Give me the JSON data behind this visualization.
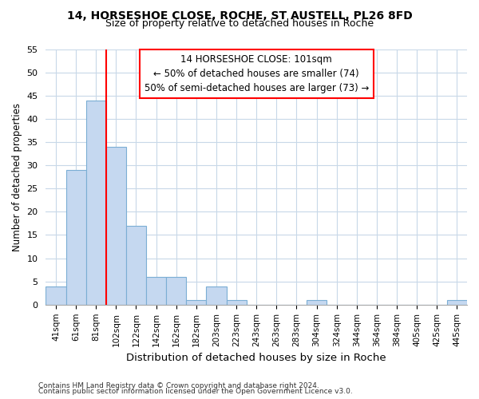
{
  "title1": "14, HORSESHOE CLOSE, ROCHE, ST AUSTELL, PL26 8FD",
  "title2": "Size of property relative to detached houses in Roche",
  "xlabel": "Distribution of detached houses by size in Roche",
  "ylabel": "Number of detached properties",
  "categories": [
    "41sqm",
    "61sqm",
    "81sqm",
    "102sqm",
    "122sqm",
    "142sqm",
    "162sqm",
    "182sqm",
    "203sqm",
    "223sqm",
    "243sqm",
    "263sqm",
    "283sqm",
    "304sqm",
    "324sqm",
    "344sqm",
    "364sqm",
    "384sqm",
    "405sqm",
    "425sqm",
    "445sqm"
  ],
  "values": [
    4,
    29,
    44,
    34,
    17,
    6,
    6,
    1,
    4,
    1,
    0,
    0,
    0,
    1,
    0,
    0,
    0,
    0,
    0,
    0,
    1
  ],
  "bar_color": "#c5d8f0",
  "bar_edge_color": "#7baed4",
  "vline_x": 3,
  "vline_color": "red",
  "annotation_title": "14 HORSESHOE CLOSE: 101sqm",
  "annotation_line1": "← 50% of detached houses are smaller (74)",
  "annotation_line2": "50% of semi-detached houses are larger (73) →",
  "annotation_box_color": "white",
  "annotation_box_edge": "red",
  "ylim": [
    0,
    55
  ],
  "yticks": [
    0,
    5,
    10,
    15,
    20,
    25,
    30,
    35,
    40,
    45,
    50,
    55
  ],
  "footer1": "Contains HM Land Registry data © Crown copyright and database right 2024.",
  "footer2": "Contains public sector information licensed under the Open Government Licence v3.0.",
  "bg_color": "#ffffff",
  "grid_color": "#c8d8e8"
}
